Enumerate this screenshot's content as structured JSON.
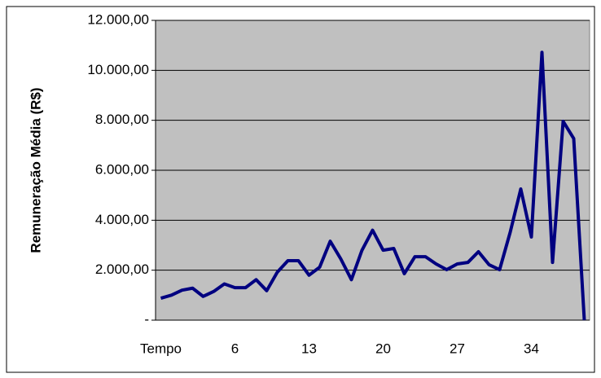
{
  "chart_data": {
    "type": "line",
    "y_axis_label": "Remuneração Média (R$)",
    "categories": [
      "Tempo",
      null,
      null,
      null,
      null,
      null,
      null,
      "6",
      null,
      null,
      null,
      null,
      null,
      null,
      "13",
      null,
      null,
      null,
      null,
      null,
      null,
      "20",
      null,
      null,
      null,
      null,
      null,
      null,
      "27",
      null,
      null,
      null,
      null,
      null,
      null,
      "34",
      null,
      null,
      null,
      null,
      null
    ],
    "series": [
      {
        "name": null,
        "color": "#000080",
        "values": [
          880,
          1000,
          1200,
          1280,
          950,
          1150,
          1450,
          1300,
          1300,
          1620,
          1180,
          1920,
          2380,
          2380,
          1800,
          2120,
          3160,
          2450,
          1620,
          2800,
          3600,
          2800,
          2870,
          1860,
          2540,
          2540,
          2250,
          2020,
          2250,
          2310,
          2740,
          2220,
          2020,
          3520,
          5250,
          3330,
          10720,
          2310,
          7960,
          7270,
          0
        ]
      }
    ],
    "ylim": [
      0,
      12000
    ],
    "yticks": [
      {
        "value": 0,
        "label": "-"
      },
      {
        "value": 2000,
        "label": "2.000,00"
      },
      {
        "value": 4000,
        "label": "4.000,00"
      },
      {
        "value": 6000,
        "label": "6.000,00"
      },
      {
        "value": 8000,
        "label": "8.000,00"
      },
      {
        "value": 10000,
        "label": "10.000,00"
      },
      {
        "value": 12000,
        "label": "12.000,00"
      }
    ],
    "grid": true,
    "plot_background": "#c0c0c0"
  }
}
